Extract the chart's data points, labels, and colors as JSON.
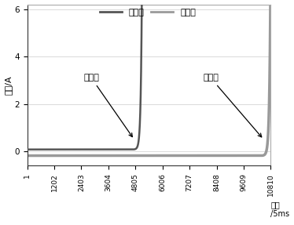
{
  "ylabel": "电流/A",
  "xlabel_line1": "时间",
  "xlabel_line2": "/5ms",
  "legend_label1": "有磁正",
  "legend_label2": "有磁反",
  "annot_label1": "有磁正",
  "annot_label2": "有磁反",
  "x_ticks": [
    1,
    1202,
    2403,
    3604,
    4805,
    6006,
    7207,
    8408,
    9609,
    10810
  ],
  "ylim": [
    -0.6,
    6.2
  ],
  "xlim": [
    1,
    10810
  ],
  "yticks": [
    0,
    2,
    4,
    6
  ],
  "curve1_color": "#555555",
  "curve2_color": "#999999",
  "background_color": "#ffffff",
  "curve1_flat_val": 0.08,
  "curve1_rise_start": 4700,
  "curve1_rise_end": 5100,
  "curve2_flat_val": -0.18,
  "curve2_rise_start": 10400,
  "curve2_rise_end": 10810,
  "max_value": 8.0,
  "grid_color": "#cccccc"
}
